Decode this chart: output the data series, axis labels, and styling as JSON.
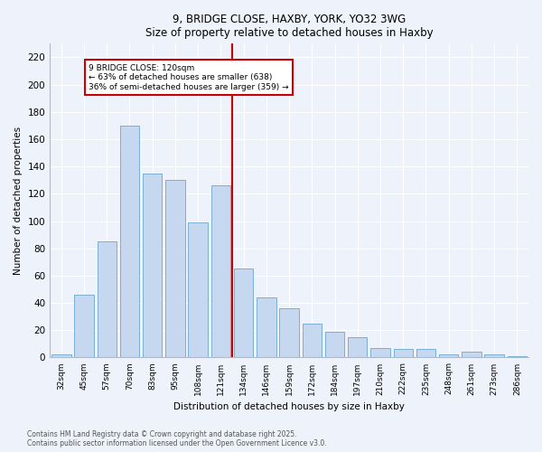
{
  "title1": "9, BRIDGE CLOSE, HAXBY, YORK, YO32 3WG",
  "title2": "Size of property relative to detached houses in Haxby",
  "xlabel": "Distribution of detached houses by size in Haxby",
  "ylabel": "Number of detached properties",
  "categories": [
    "32sqm",
    "45sqm",
    "57sqm",
    "70sqm",
    "83sqm",
    "95sqm",
    "108sqm",
    "121sqm",
    "134sqm",
    "146sqm",
    "159sqm",
    "172sqm",
    "184sqm",
    "197sqm",
    "210sqm",
    "222sqm",
    "235sqm",
    "248sqm",
    "261sqm",
    "273sqm",
    "286sqm"
  ],
  "values": [
    2,
    46,
    85,
    170,
    135,
    130,
    99,
    126,
    65,
    44,
    36,
    25,
    19,
    15,
    7,
    6,
    6,
    2,
    4,
    2,
    1
  ],
  "bar_color": "#c5d8f0",
  "bar_edge_color": "#7bafd4",
  "vline_color": "#cc0000",
  "annotation_text": "9 BRIDGE CLOSE: 120sqm\n← 63% of detached houses are smaller (638)\n36% of semi-detached houses are larger (359) →",
  "annotation_box_color": "#ffffff",
  "annotation_box_edge": "#cc0000",
  "ylim": [
    0,
    230
  ],
  "yticks": [
    0,
    20,
    40,
    60,
    80,
    100,
    120,
    140,
    160,
    180,
    200,
    220
  ],
  "footer1": "Contains HM Land Registry data © Crown copyright and database right 2025.",
  "footer2": "Contains public sector information licensed under the Open Government Licence v3.0.",
  "bg_color": "#eef2fa",
  "grid_color": "#ffffff"
}
